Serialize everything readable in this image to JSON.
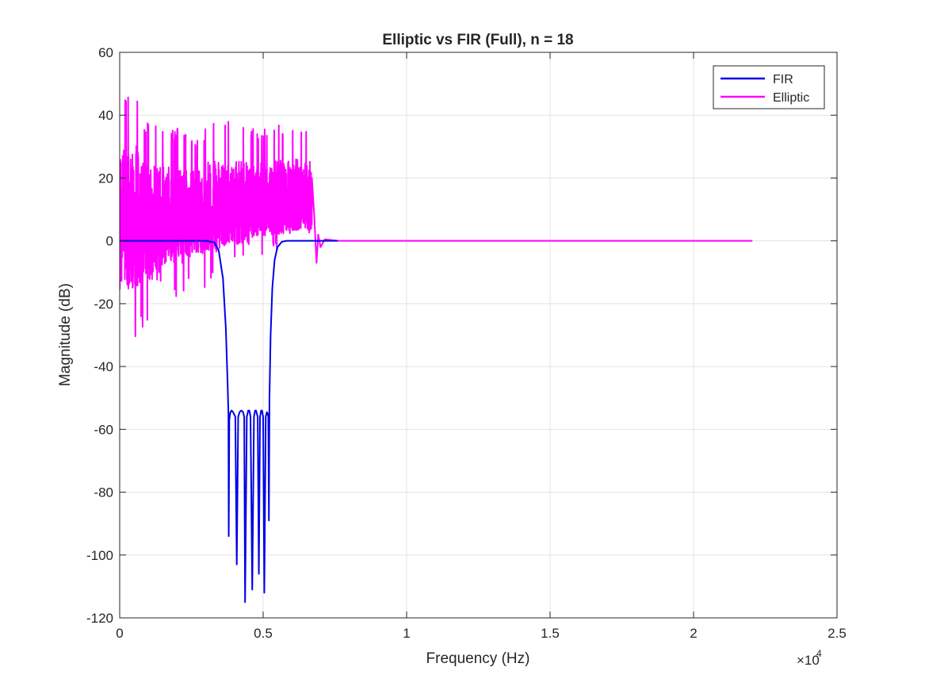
{
  "chart_data": {
    "type": "line",
    "title": "Elliptic vs FIR (Full), n = 18",
    "xlabel": "Frequency (Hz)",
    "ylabel": "Magnitude (dB)",
    "x_exponent_label": "×10",
    "x_exponent_power": "4",
    "xlim": [
      0,
      25000
    ],
    "ylim": [
      -120,
      60
    ],
    "xticks": [
      0,
      5000,
      10000,
      15000,
      20000,
      25000
    ],
    "xtick_labels": [
      "0",
      "0.5",
      "1",
      "1.5",
      "2",
      "2.5"
    ],
    "yticks": [
      -120,
      -100,
      -80,
      -60,
      -40,
      -20,
      0,
      20,
      40,
      60
    ],
    "ytick_labels": [
      "-120",
      "-100",
      "-80",
      "-60",
      "-40",
      "-20",
      "0",
      "20",
      "40",
      "60"
    ],
    "grid": true,
    "legend_position": "top-right",
    "series": [
      {
        "name": "FIR",
        "color": "#0000e6",
        "x": [
          0,
          3000,
          3300,
          3450,
          3600,
          3700,
          3760,
          3790,
          3800,
          3820,
          3840,
          3860,
          3900,
          3950,
          4030,
          4080,
          4130,
          4180,
          4240,
          4300,
          4340,
          4370,
          4430,
          4480,
          4520,
          4560,
          4620,
          4680,
          4720,
          4750,
          4810,
          4850,
          4890,
          4930,
          4960,
          5000,
          5040,
          5090,
          5130,
          5160,
          5180,
          5200,
          5220,
          5260,
          5320,
          5400,
          5500,
          5650,
          5800,
          6000,
          7600
        ],
        "y": [
          0,
          0,
          -0.5,
          -3,
          -12,
          -28,
          -45,
          -55,
          -94,
          -57,
          -55.5,
          -54.5,
          -54,
          -54.5,
          -56,
          -103,
          -56,
          -54.5,
          -54,
          -54.5,
          -56,
          -115,
          -56,
          -54,
          -54,
          -56,
          -111,
          -56,
          -54,
          -54,
          -56,
          -106,
          -56,
          -54,
          -54,
          -56,
          -112,
          -56,
          -54.5,
          -55,
          -56,
          -89,
          -50,
          -30,
          -15,
          -6,
          -2,
          -0.3,
          0,
          0,
          0
        ]
      },
      {
        "name": "Elliptic",
        "color": "#ff00ff",
        "x": [
          0,
          22050
        ],
        "y": [
          0,
          0
        ],
        "band_end_hz": 6700,
        "band_upper_peaks": [
          47,
          38,
          36,
          34,
          38,
          38,
          36,
          37,
          38
        ],
        "band_lower_troughs": [
          -32,
          -28,
          -19,
          -15,
          -12,
          -8,
          -5,
          -3,
          -1
        ],
        "tail_points_x": [
          6700,
          6780,
          6860,
          6920,
          7000,
          7150,
          7600,
          22050
        ],
        "tail_points_y": [
          20,
          8,
          -7,
          2,
          -2,
          0.5,
          0,
          0
        ]
      }
    ]
  }
}
